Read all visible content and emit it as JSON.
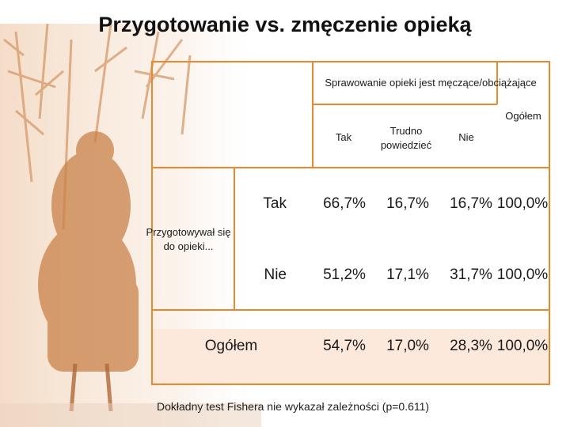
{
  "title": "Przygotowanie vs. zmęczenie opieką",
  "table": {
    "column_group_header": "Sprawowanie opieki jest męczące/obciążające",
    "column_headers": [
      "Tak",
      "Trudno powiedzieć",
      "Nie"
    ],
    "total_column_header": "Ogółem",
    "row_group_header": "Przygotowywał się do opieki...",
    "rows": [
      {
        "label": "Tak",
        "values": [
          "66,7%",
          "16,7%",
          "16,7%",
          "100,0%"
        ]
      },
      {
        "label": "Nie",
        "values": [
          "51,2%",
          "17,1%",
          "31,7%",
          "100,0%"
        ]
      },
      {
        "label": "Ogółem",
        "values": [
          "54,7%",
          "17,0%",
          "28,3%",
          "100,0%"
        ]
      }
    ]
  },
  "footnote": "Dokładny test Fishera nie wykazał zależności (p=0.611)",
  "colors": {
    "border": "#e8892f",
    "total_row_fill": "#fce9dc",
    "photo_tint": "#c9824a"
  }
}
